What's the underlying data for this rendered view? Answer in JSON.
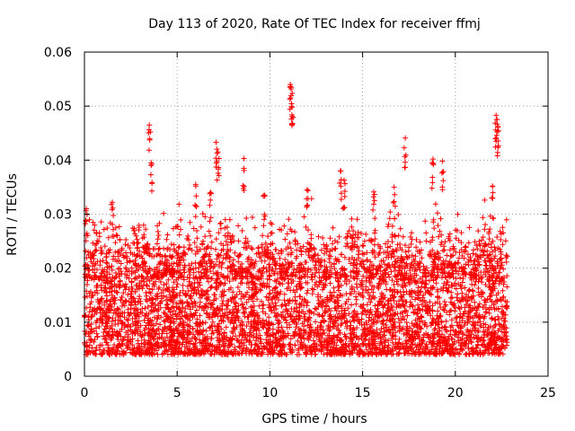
{
  "chart_data": {
    "type": "scatter",
    "title": "Day 113 of 2020, Rate Of TEC Index for receiver ffmj",
    "xlabel": "GPS time / hours",
    "ylabel": "ROTI / TECUs",
    "xlim": [
      0,
      25
    ],
    "ylim": [
      0,
      0.06
    ],
    "x_ticks": [
      "0",
      "5",
      "10",
      "15",
      "20",
      "25"
    ],
    "y_ticks": [
      "0",
      "0.01",
      "0.02",
      "0.03",
      "0.04",
      "0.05",
      "0.06"
    ],
    "grid": true,
    "marker": "plus",
    "series": [
      {
        "name": "ROTI",
        "color": "#ff0000",
        "x_range": [
          0,
          22.8
        ],
        "typical_range": [
          0.004,
          0.02
        ],
        "notable_points": [
          {
            "x": 3.5,
            "y": 0.0465
          },
          {
            "x": 3.6,
            "y": 0.0395
          },
          {
            "x": 7.1,
            "y": 0.0433
          },
          {
            "x": 7.2,
            "y": 0.0415
          },
          {
            "x": 8.6,
            "y": 0.0403
          },
          {
            "x": 11.1,
            "y": 0.054
          },
          {
            "x": 11.15,
            "y": 0.0535
          },
          {
            "x": 11.2,
            "y": 0.0498
          },
          {
            "x": 12.0,
            "y": 0.0345
          },
          {
            "x": 13.8,
            "y": 0.038
          },
          {
            "x": 17.3,
            "y": 0.0441
          },
          {
            "x": 18.8,
            "y": 0.0402
          },
          {
            "x": 19.3,
            "y": 0.0398
          },
          {
            "x": 22.2,
            "y": 0.0483
          },
          {
            "x": 22.25,
            "y": 0.0475
          },
          {
            "x": 22.3,
            "y": 0.0462
          },
          {
            "x": 0.1,
            "y": 0.031
          },
          {
            "x": 1.5,
            "y": 0.0322
          },
          {
            "x": 6.0,
            "y": 0.0355
          },
          {
            "x": 6.8,
            "y": 0.034
          },
          {
            "x": 9.7,
            "y": 0.0335
          },
          {
            "x": 14.0,
            "y": 0.0363
          },
          {
            "x": 15.6,
            "y": 0.0341
          },
          {
            "x": 16.7,
            "y": 0.035
          },
          {
            "x": 22.0,
            "y": 0.0352
          }
        ]
      }
    ]
  }
}
